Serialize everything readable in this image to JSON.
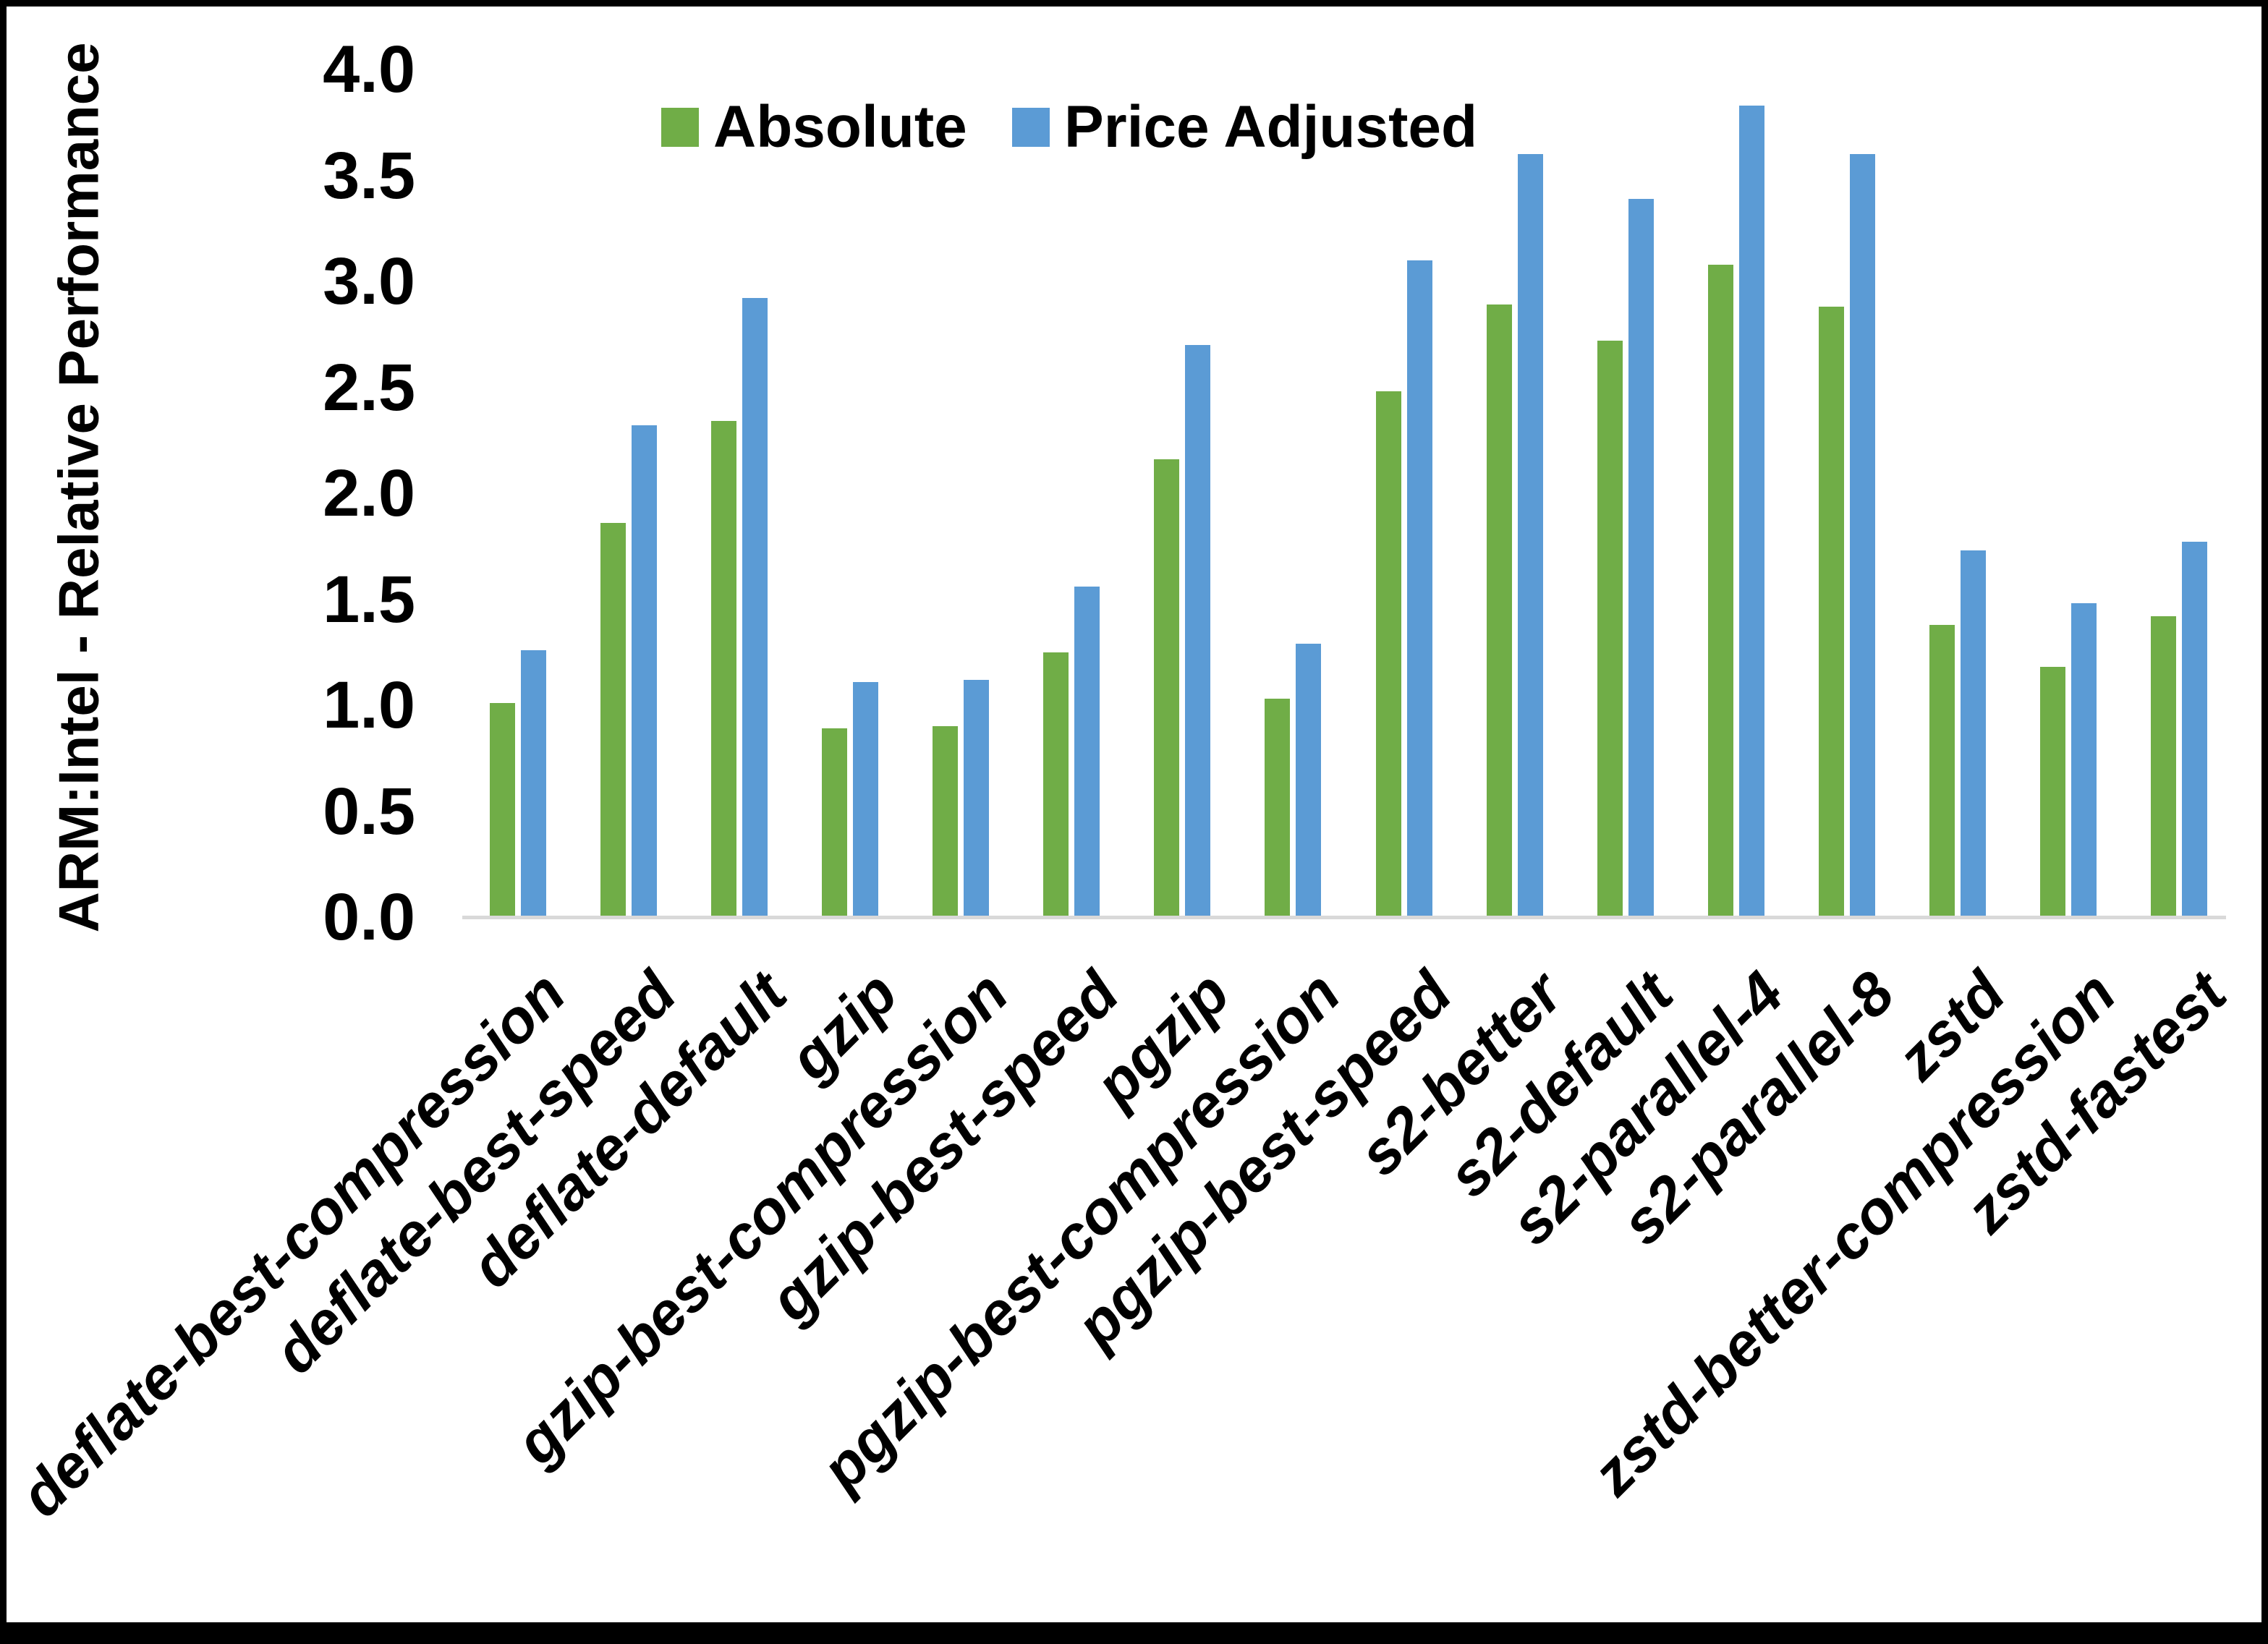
{
  "chart_data": {
    "type": "bar",
    "title": "",
    "ylabel": "ARM:Intel - Relative Performance",
    "xlabel": "",
    "ylim": [
      0.0,
      4.0
    ],
    "ytick_step": 0.5,
    "ytick_labels": [
      "0.0",
      "0.5",
      "1.0",
      "1.5",
      "2.0",
      "2.5",
      "3.0",
      "3.5",
      "4.0"
    ],
    "grid": false,
    "legend_position": "top-center",
    "categories": [
      "deflate-best-compression",
      "deflate-best-speed",
      "deflate-default",
      "gzip",
      "gzip-best-compression",
      "gzip-best-speed",
      "pgzip",
      "pgzip-best-compression",
      "pgzip-best-speed",
      "s2-better",
      "s2-default",
      "s2-parallel-4",
      "s2-parallel-8",
      "zstd",
      "zstd-better-compression",
      "zstd-fastest"
    ],
    "series": [
      {
        "name": "Absolute",
        "color": "#70AD47",
        "values": [
          1.01,
          1.86,
          2.34,
          0.89,
          0.9,
          1.25,
          2.16,
          1.03,
          2.48,
          2.89,
          2.72,
          3.08,
          2.88,
          1.38,
          1.18,
          1.42
        ]
      },
      {
        "name": "Price Adjusted",
        "color": "#5B9BD5",
        "values": [
          1.26,
          2.32,
          2.92,
          1.11,
          1.12,
          1.56,
          2.7,
          1.29,
          3.1,
          3.6,
          3.39,
          3.83,
          3.6,
          1.73,
          1.48,
          1.77
        ]
      }
    ],
    "axis_line_color": "#d9d9d9",
    "background_color": "#ffffff",
    "border_color": "#000000"
  }
}
